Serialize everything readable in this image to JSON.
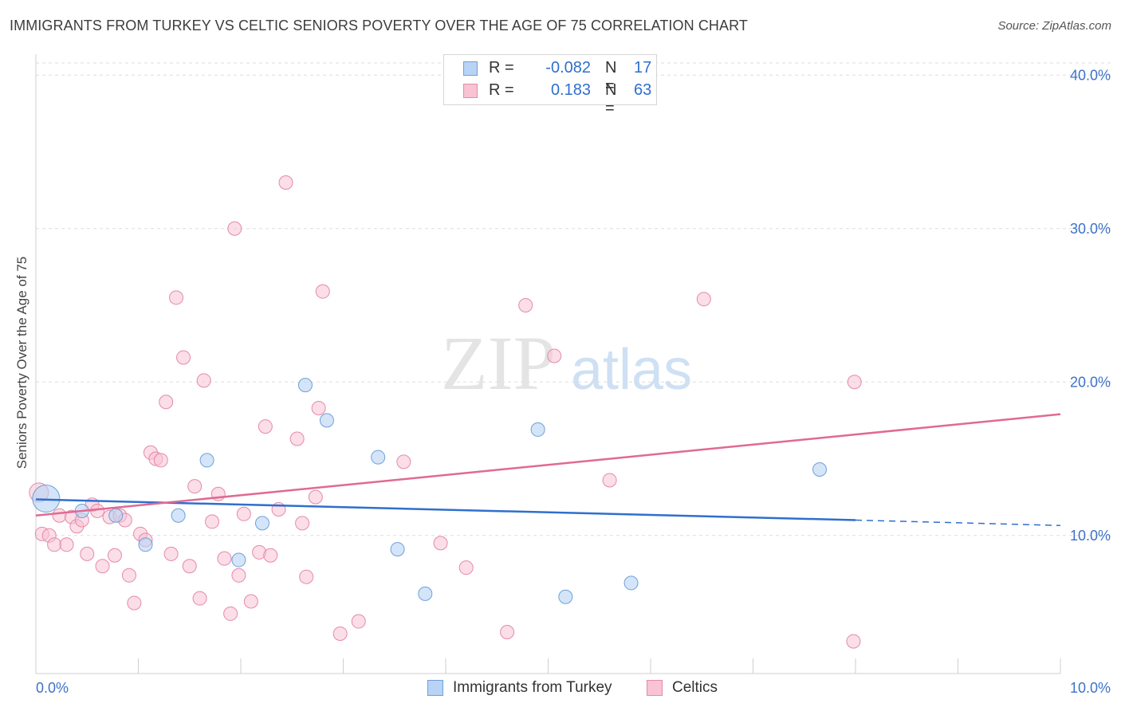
{
  "header": {
    "title": "IMMIGRANTS FROM TURKEY VS CELTIC SENIORS POVERTY OVER THE AGE OF 75 CORRELATION CHART",
    "source": "Source: ZipAtlas.com"
  },
  "legend": {
    "rows": [
      {
        "r_label": "R =",
        "r_value": "-0.082",
        "n_label": "N =",
        "n_value": "17"
      },
      {
        "r_label": "R =",
        "r_value": "0.183",
        "n_label": "N =",
        "n_value": "63"
      }
    ]
  },
  "bottom_legend": {
    "turkey": "Immigrants from Turkey",
    "celtics": "Celtics"
  },
  "watermark": {
    "zip": "ZIP",
    "atlas": "atlas"
  },
  "colors": {
    "turkey_fill": "#b8d3f5",
    "turkey_stroke": "#6f9fd8",
    "turkey_line": "#2f6fce",
    "celtics_fill": "#f8c3d3",
    "celtics_stroke": "#e58aa8",
    "celtics_line": "#e06a93",
    "tick_label": "#3d72c8",
    "grid": "#dedede"
  },
  "chart_data": {
    "type": "scatter",
    "title": "IMMIGRANTS FROM TURKEY VS CELTIC SENIORS POVERTY OVER THE AGE OF 75 CORRELATION CHART",
    "xlabel": "",
    "ylabel": "Seniors Poverty Over the Age of 75",
    "xlim": [
      0,
      10
    ],
    "ylim": [
      1.0,
      41.0
    ],
    "x_ticks": [
      "0.0%",
      "10.0%"
    ],
    "y_ticks": [
      {
        "value": 10,
        "label": "10.0%"
      },
      {
        "value": 20,
        "label": "20.0%"
      },
      {
        "value": 30,
        "label": "30.0%"
      },
      {
        "value": 40,
        "label": "40.0%"
      }
    ],
    "grid": true,
    "legend_position": "top-center",
    "series": [
      {
        "name": "Immigrants from Turkey",
        "r": -0.082,
        "n": 17,
        "points": [
          [
            0.1,
            12.4
          ],
          [
            0.45,
            11.6
          ],
          [
            0.78,
            11.3
          ],
          [
            1.07,
            9.4
          ],
          [
            1.39,
            11.3
          ],
          [
            1.67,
            14.9
          ],
          [
            1.98,
            8.4
          ],
          [
            2.21,
            10.8
          ],
          [
            2.63,
            19.8
          ],
          [
            2.84,
            17.5
          ],
          [
            3.34,
            15.1
          ],
          [
            3.53,
            9.1
          ],
          [
            3.8,
            6.2
          ],
          [
            4.9,
            16.9
          ],
          [
            5.17,
            6.0
          ],
          [
            5.81,
            6.9
          ],
          [
            7.65,
            14.3
          ]
        ],
        "trend": {
          "x0": 0.0,
          "y0": 12.35,
          "x1": 8.0,
          "y1": 11.0,
          "dash_to_x": 10.0,
          "dash_to_y": 10.65
        }
      },
      {
        "name": "Celtics",
        "r": 0.183,
        "n": 63,
        "points": [
          [
            0.03,
            12.8
          ],
          [
            0.06,
            10.1
          ],
          [
            0.13,
            10.0
          ],
          [
            0.18,
            9.4
          ],
          [
            0.23,
            11.3
          ],
          [
            0.3,
            9.4
          ],
          [
            0.35,
            11.2
          ],
          [
            0.4,
            10.6
          ],
          [
            0.45,
            11.0
          ],
          [
            0.5,
            8.8
          ],
          [
            0.55,
            12.0
          ],
          [
            0.6,
            11.6
          ],
          [
            0.65,
            8.0
          ],
          [
            0.72,
            11.2
          ],
          [
            0.77,
            8.7
          ],
          [
            0.82,
            11.3
          ],
          [
            0.87,
            11.0
          ],
          [
            0.91,
            7.4
          ],
          [
            0.96,
            5.6
          ],
          [
            1.02,
            10.1
          ],
          [
            1.07,
            9.7
          ],
          [
            1.12,
            15.4
          ],
          [
            1.17,
            15.0
          ],
          [
            1.22,
            14.9
          ],
          [
            1.27,
            18.7
          ],
          [
            1.32,
            8.8
          ],
          [
            1.37,
            25.5
          ],
          [
            1.44,
            21.6
          ],
          [
            1.5,
            8.0
          ],
          [
            1.55,
            13.2
          ],
          [
            1.6,
            5.9
          ],
          [
            1.64,
            20.1
          ],
          [
            1.72,
            10.9
          ],
          [
            1.78,
            12.7
          ],
          [
            1.84,
            8.5
          ],
          [
            1.9,
            4.9
          ],
          [
            1.94,
            30.0
          ],
          [
            1.98,
            7.4
          ],
          [
            2.03,
            11.4
          ],
          [
            2.1,
            5.7
          ],
          [
            2.18,
            8.9
          ],
          [
            2.24,
            17.1
          ],
          [
            2.29,
            8.7
          ],
          [
            2.37,
            11.7
          ],
          [
            2.44,
            33.0
          ],
          [
            2.55,
            16.3
          ],
          [
            2.6,
            10.8
          ],
          [
            2.64,
            7.3
          ],
          [
            2.73,
            12.5
          ],
          [
            2.76,
            18.3
          ],
          [
            2.8,
            25.9
          ],
          [
            2.97,
            3.6
          ],
          [
            3.15,
            4.4
          ],
          [
            3.59,
            14.8
          ],
          [
            3.95,
            9.5
          ],
          [
            4.2,
            7.9
          ],
          [
            4.6,
            3.7
          ],
          [
            4.78,
            25.0
          ],
          [
            5.06,
            21.7
          ],
          [
            5.6,
            13.6
          ],
          [
            6.52,
            25.4
          ],
          [
            7.99,
            20.0
          ],
          [
            7.98,
            3.1
          ]
        ],
        "trend": {
          "x0": 0.0,
          "y0": 11.3,
          "x1": 10.0,
          "y1": 17.9
        }
      }
    ]
  }
}
